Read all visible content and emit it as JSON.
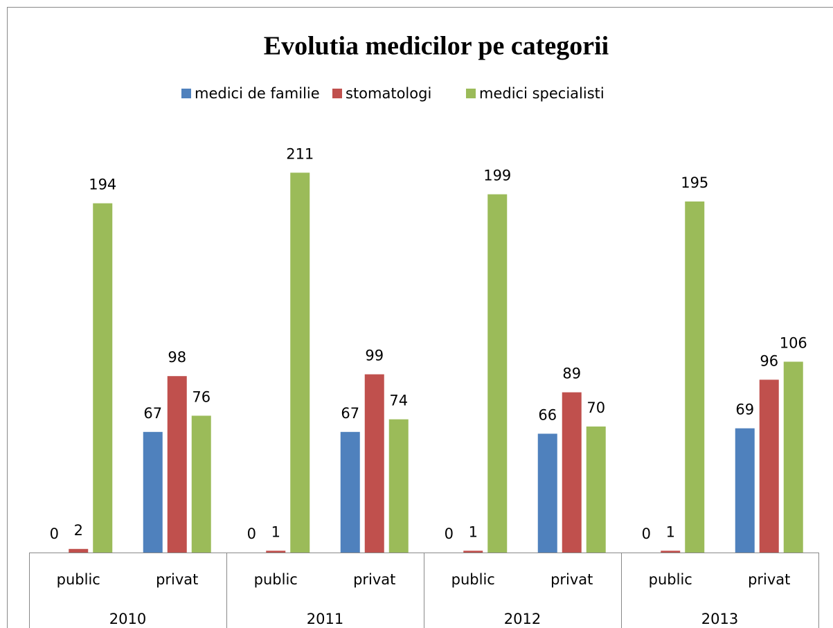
{
  "chart_data": {
    "type": "bar",
    "title": "Evolutia medicilor pe categorii",
    "groups": [
      "2010",
      "2011",
      "2012",
      "2013"
    ],
    "categories": [
      "public",
      "privat",
      "public",
      "privat",
      "public",
      "privat",
      "public",
      "privat"
    ],
    "series": [
      {
        "name": "medici de familie",
        "color": "#4f81bd",
        "values": [
          0,
          67,
          0,
          67,
          0,
          66,
          0,
          69
        ]
      },
      {
        "name": "stomatologi",
        "color": "#c0504d",
        "values": [
          2,
          98,
          1,
          99,
          1,
          89,
          1,
          96
        ]
      },
      {
        "name": "medici specialisti",
        "color": "#9bbb59",
        "values": [
          194,
          76,
          211,
          74,
          199,
          70,
          195,
          106
        ]
      }
    ],
    "ylim": [
      0,
      250
    ],
    "legend": "top"
  }
}
